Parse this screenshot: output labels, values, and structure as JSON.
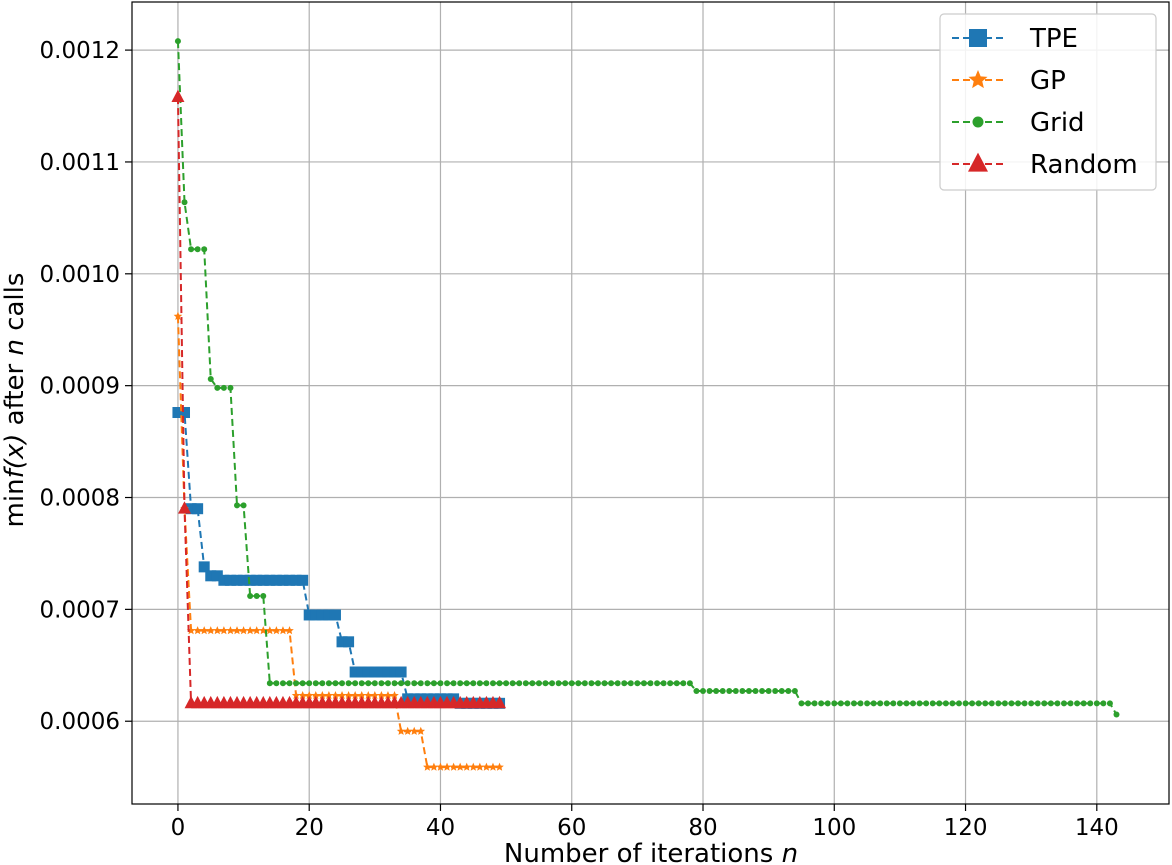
{
  "chart_data": {
    "type": "line",
    "title": "",
    "xlabel": "Number of iterations",
    "xlabel_var": "n",
    "ylabel_prefix": "min",
    "ylabel_fx": "f(x)",
    "ylabel_mid": " after ",
    "ylabel_var": "n",
    "ylabel_suffix": " calls",
    "xlim": [
      -7,
      151
    ],
    "ylim": [
      0.000526,
      0.001243
    ],
    "xticks": [
      0,
      20,
      40,
      60,
      80,
      100,
      120,
      140
    ],
    "yticks": [
      0.0006,
      0.0007,
      0.0008,
      0.0009,
      0.001,
      0.0011,
      0.0012
    ],
    "ytick_labels": [
      "0.0006",
      "0.0007",
      "0.0008",
      "0.0009",
      "0.0010",
      "0.0011",
      "0.0012"
    ],
    "grid": true,
    "legend_position": "top-right",
    "series": [
      {
        "name": "TPE",
        "color": "#1f77b4",
        "marker": "square",
        "n": 50,
        "steps": [
          [
            0,
            0.000876
          ],
          [
            2,
            0.00079
          ],
          [
            4,
            0.000738
          ],
          [
            5,
            0.00073
          ],
          [
            7,
            0.000726
          ],
          [
            20,
            0.000695
          ],
          [
            25,
            0.000671
          ],
          [
            27,
            0.000644
          ],
          [
            35,
            0.00062
          ],
          [
            43,
            0.000616
          ]
        ]
      },
      {
        "name": "GP",
        "color": "#ff7f0e",
        "marker": "star",
        "n": 50,
        "steps": [
          [
            0,
            0.000962
          ],
          [
            1,
            0.00079
          ],
          [
            2,
            0.000681
          ],
          [
            18,
            0.000623
          ],
          [
            34,
            0.000591
          ],
          [
            38,
            0.000559
          ]
        ]
      },
      {
        "name": "Grid",
        "color": "#2ca02c",
        "marker": "circle",
        "n": 144,
        "steps": [
          [
            0,
            0.001208
          ],
          [
            1,
            0.001064
          ],
          [
            2,
            0.001022
          ],
          [
            5,
            0.000906
          ],
          [
            6,
            0.000898
          ],
          [
            9,
            0.000793
          ],
          [
            11,
            0.000712
          ],
          [
            14,
            0.000634
          ],
          [
            79,
            0.000627
          ],
          [
            95,
            0.000616
          ],
          [
            143,
            0.000606
          ]
        ]
      },
      {
        "name": "Random",
        "color": "#d62728",
        "marker": "triangle",
        "n": 50,
        "steps": [
          [
            0,
            0.001158
          ],
          [
            1,
            0.00079
          ],
          [
            2,
            0.000616
          ]
        ]
      }
    ]
  }
}
